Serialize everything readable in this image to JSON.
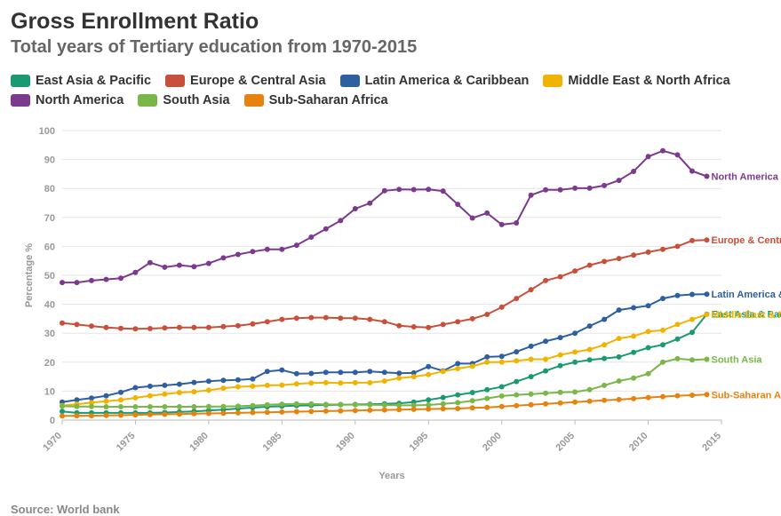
{
  "chart_data": {
    "type": "line",
    "title": "Gross Enrollment Ratio",
    "subtitle": "Total years of Tertiary education from 1970-2015",
    "xlabel": "Years",
    "ylabel": "Percentage %",
    "xlim": [
      1970,
      2015
    ],
    "ylim": [
      0,
      100
    ],
    "x_ticks": [
      "1970",
      "1975",
      "1980",
      "1985",
      "1990",
      "1995",
      "2000",
      "2005",
      "2010",
      "2015"
    ],
    "y_ticks": [
      "0",
      "10",
      "20",
      "30",
      "40",
      "50",
      "60",
      "70",
      "80",
      "90",
      "100"
    ],
    "grid": true,
    "legend_position": "top",
    "x": [
      1970,
      1971,
      1972,
      1973,
      1974,
      1975,
      1976,
      1977,
      1978,
      1979,
      1980,
      1981,
      1982,
      1983,
      1984,
      1985,
      1986,
      1987,
      1988,
      1989,
      1990,
      1991,
      1992,
      1993,
      1994,
      1995,
      1996,
      1997,
      1998,
      1999,
      2000,
      2001,
      2002,
      2003,
      2004,
      2005,
      2006,
      2007,
      2008,
      2009,
      2010,
      2011,
      2012,
      2013,
      2014
    ],
    "series": [
      {
        "name": "East Asia & Pacific",
        "color": "#1a9a73",
        "end_label": "East Asia & Pacific",
        "values": [
          3.0,
          2.5,
          2.5,
          2.5,
          2.5,
          2.5,
          2.5,
          2.6,
          2.8,
          3.0,
          3.3,
          3.6,
          4.0,
          4.3,
          4.6,
          4.8,
          5.0,
          5.1,
          5.2,
          5.3,
          5.4,
          5.5,
          5.6,
          5.8,
          6.2,
          7.0,
          7.8,
          8.7,
          9.5,
          10.5,
          11.5,
          13.3,
          15.0,
          17.0,
          18.8,
          20.0,
          20.8,
          21.3,
          21.8,
          23.4,
          25.0,
          26.0,
          28.0,
          30.3,
          36.6
        ]
      },
      {
        "name": "Europe & Central Asia",
        "color": "#c8503a",
        "end_label": "Europe & Central Asia",
        "values": [
          33.5,
          33.0,
          32.5,
          32.0,
          31.7,
          31.5,
          31.6,
          31.8,
          32.0,
          32.0,
          32.0,
          32.3,
          32.6,
          33.2,
          34.0,
          34.8,
          35.2,
          35.4,
          35.4,
          35.2,
          35.2,
          34.8,
          34.0,
          32.6,
          32.2,
          32.0,
          33.0,
          34.0,
          35.0,
          36.5,
          39.0,
          42.0,
          45.0,
          48.2,
          49.5,
          51.5,
          53.5,
          54.8,
          55.8,
          57.0,
          58.0,
          59.0,
          60.0,
          62.0,
          62.2
        ]
      },
      {
        "name": "Latin America & Caribbean",
        "color": "#2e5fa0",
        "end_label": "Latin America & Caribbean",
        "values": [
          6.2,
          7.0,
          7.6,
          8.4,
          9.6,
          11.2,
          11.7,
          12.0,
          12.4,
          13.0,
          13.4,
          13.7,
          13.9,
          14.2,
          16.8,
          17.3,
          16.0,
          16.1,
          16.5,
          16.5,
          16.5,
          16.8,
          16.5,
          16.2,
          16.3,
          18.5,
          17.0,
          19.5,
          19.5,
          21.8,
          22.0,
          23.6,
          25.5,
          27.2,
          28.5,
          30.0,
          32.5,
          34.8,
          38.0,
          38.8,
          39.5,
          42.0,
          43.0,
          43.4,
          43.5
        ]
      },
      {
        "name": "Middle East & North Africa",
        "color": "#f0b400",
        "end_label": "Middle East & North Africa",
        "values": [
          5.0,
          5.5,
          6.0,
          6.5,
          7.0,
          7.7,
          8.4,
          9.0,
          9.5,
          9.8,
          10.3,
          11.0,
          11.5,
          11.7,
          12.0,
          12.1,
          12.5,
          12.8,
          12.9,
          12.8,
          12.9,
          12.9,
          13.5,
          14.5,
          15.0,
          15.7,
          16.8,
          17.8,
          18.6,
          20.0,
          20.0,
          20.5,
          21.0,
          21.0,
          22.5,
          23.5,
          24.4,
          26.0,
          28.2,
          29.0,
          30.6,
          31.0,
          33.0,
          34.8,
          36.5
        ]
      },
      {
        "name": "North America",
        "color": "#7b3a8e",
        "end_label": "North America",
        "values": [
          47.5,
          47.5,
          48.2,
          48.6,
          49.0,
          51.0,
          54.4,
          52.8,
          53.5,
          53.0,
          54.1,
          56.0,
          57.2,
          58.2,
          59.0,
          59.0,
          60.4,
          63.2,
          66.0,
          68.9,
          73.0,
          74.9,
          79.2,
          79.7,
          79.6,
          79.7,
          79.1,
          74.5,
          69.8,
          71.5,
          67.5,
          68.1,
          77.7,
          79.5,
          79.5,
          80.1,
          80.1,
          81.0,
          82.8,
          85.9,
          91.0,
          93.0,
          91.6,
          86.0,
          84.2
        ]
      },
      {
        "name": "South Asia",
        "color": "#7ab648",
        "end_label": "South Asia",
        "values": [
          4.8,
          4.7,
          4.7,
          4.6,
          4.6,
          4.6,
          4.6,
          4.6,
          4.6,
          4.6,
          4.7,
          4.7,
          4.8,
          5.0,
          5.3,
          5.5,
          5.6,
          5.6,
          5.4,
          5.4,
          5.3,
          5.3,
          5.2,
          5.1,
          5.1,
          5.2,
          5.6,
          6.0,
          6.7,
          7.5,
          8.3,
          8.7,
          9.0,
          9.3,
          9.6,
          9.7,
          10.5,
          12.0,
          13.5,
          14.5,
          16.0,
          20.0,
          21.2,
          20.8,
          21.0
        ]
      },
      {
        "name": "Sub-Saharan Africa",
        "color": "#e8820e",
        "end_label": "Sub-Saharan Africa",
        "values": [
          1.4,
          1.5,
          1.5,
          1.6,
          1.7,
          1.8,
          1.9,
          2.0,
          2.1,
          2.2,
          2.3,
          2.4,
          2.5,
          2.6,
          2.7,
          2.8,
          2.9,
          3.0,
          3.1,
          3.2,
          3.3,
          3.4,
          3.5,
          3.6,
          3.7,
          3.8,
          3.9,
          4.0,
          4.2,
          4.4,
          4.7,
          5.0,
          5.3,
          5.6,
          5.9,
          6.2,
          6.5,
          6.8,
          7.1,
          7.4,
          7.8,
          8.1,
          8.4,
          8.6,
          8.8
        ]
      }
    ],
    "source": "Source: World bank"
  }
}
